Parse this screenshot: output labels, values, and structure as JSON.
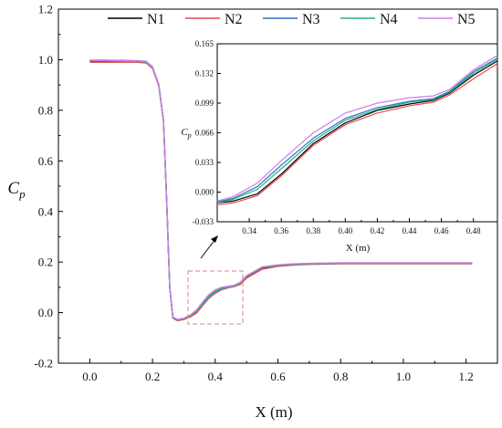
{
  "chart_data": [
    {
      "type": "line",
      "ylabel": "C",
      "ylabel_sub": "p",
      "xlabel": "X (m)",
      "xlim": [
        -0.1,
        1.3
      ],
      "ylim": [
        -0.2,
        1.2
      ],
      "xticks": [
        0.0,
        0.2,
        0.4,
        0.6,
        0.8,
        1.0,
        1.2
      ],
      "xtick_labels": [
        "0.0",
        "0.2",
        "0.4",
        "0.6",
        "0.8",
        "1.0",
        "1.2"
      ],
      "yticks": [
        -0.2,
        0.0,
        0.2,
        0.4,
        0.6,
        0.8,
        1.0,
        1.2
      ],
      "ytick_labels": [
        "-0.2",
        "0.0",
        "0.2",
        "0.4",
        "0.6",
        "0.8",
        "1.0",
        "1.2"
      ],
      "grid": false,
      "legend_position": "top",
      "series": [
        {
          "name": "N1",
          "color": "#000000",
          "x": [
            0.0,
            0.05,
            0.1,
            0.15,
            0.18,
            0.2,
            0.22,
            0.235,
            0.245,
            0.255,
            0.265,
            0.28,
            0.3,
            0.32,
            0.34,
            0.36,
            0.38,
            0.4,
            0.42,
            0.44,
            0.46,
            0.48,
            0.5,
            0.55,
            0.6,
            0.65,
            0.7,
            0.8,
            0.9,
            1.0,
            1.1,
            1.22
          ],
          "y": [
            0.995,
            0.995,
            0.994,
            0.993,
            0.99,
            0.97,
            0.9,
            0.76,
            0.45,
            0.1,
            -0.02,
            -0.03,
            -0.025,
            -0.015,
            0.0,
            0.03,
            0.06,
            0.08,
            0.093,
            0.1,
            0.104,
            0.115,
            0.14,
            0.175,
            0.185,
            0.19,
            0.193,
            0.195,
            0.195,
            0.195,
            0.195,
            0.195
          ]
        },
        {
          "name": "N2",
          "color": "#e8474a",
          "x": [
            0.0,
            0.05,
            0.1,
            0.15,
            0.18,
            0.2,
            0.22,
            0.235,
            0.245,
            0.255,
            0.265,
            0.28,
            0.3,
            0.32,
            0.34,
            0.36,
            0.38,
            0.4,
            0.42,
            0.44,
            0.46,
            0.48,
            0.5,
            0.55,
            0.6,
            0.65,
            0.7,
            0.8,
            0.9,
            1.0,
            1.1,
            1.22
          ],
          "y": [
            0.99,
            0.99,
            0.99,
            0.99,
            0.987,
            0.966,
            0.896,
            0.756,
            0.446,
            0.098,
            -0.022,
            -0.032,
            -0.027,
            -0.017,
            -0.002,
            0.028,
            0.057,
            0.077,
            0.09,
            0.098,
            0.103,
            0.112,
            0.137,
            0.172,
            0.183,
            0.188,
            0.191,
            0.193,
            0.193,
            0.193,
            0.193,
            0.193
          ]
        },
        {
          "name": "N3",
          "color": "#2e6fc2",
          "x": [
            0.0,
            0.05,
            0.1,
            0.15,
            0.18,
            0.2,
            0.22,
            0.235,
            0.245,
            0.255,
            0.265,
            0.28,
            0.3,
            0.32,
            0.34,
            0.36,
            0.38,
            0.4,
            0.42,
            0.44,
            0.46,
            0.48,
            0.5,
            0.55,
            0.6,
            0.65,
            0.7,
            0.8,
            0.9,
            1.0,
            1.1,
            1.22
          ],
          "y": [
            0.998,
            0.998,
            0.997,
            0.996,
            0.993,
            0.972,
            0.902,
            0.762,
            0.452,
            0.102,
            -0.018,
            -0.028,
            -0.023,
            -0.012,
            0.006,
            0.037,
            0.065,
            0.084,
            0.096,
            0.102,
            0.106,
            0.118,
            0.145,
            0.18,
            0.188,
            0.192,
            0.194,
            0.196,
            0.196,
            0.196,
            0.196,
            0.196
          ]
        },
        {
          "name": "N4",
          "color": "#22b38a",
          "x": [
            0.0,
            0.05,
            0.1,
            0.15,
            0.18,
            0.2,
            0.22,
            0.235,
            0.245,
            0.255,
            0.265,
            0.28,
            0.3,
            0.32,
            0.34,
            0.36,
            0.38,
            0.4,
            0.42,
            0.44,
            0.46,
            0.48,
            0.5,
            0.55,
            0.6,
            0.65,
            0.7,
            0.8,
            0.9,
            1.0,
            1.1,
            1.22
          ],
          "y": [
            0.996,
            0.996,
            0.995,
            0.994,
            0.991,
            0.97,
            0.9,
            0.76,
            0.45,
            0.1,
            -0.019,
            -0.029,
            -0.024,
            -0.013,
            0.004,
            0.034,
            0.062,
            0.082,
            0.094,
            0.101,
            0.105,
            0.117,
            0.143,
            0.178,
            0.187,
            0.191,
            0.193,
            0.195,
            0.195,
            0.195,
            0.195,
            0.195
          ]
        },
        {
          "name": "N5",
          "color": "#cf7ee3",
          "x": [
            0.0,
            0.05,
            0.1,
            0.15,
            0.18,
            0.2,
            0.22,
            0.235,
            0.245,
            0.255,
            0.265,
            0.28,
            0.3,
            0.32,
            0.34,
            0.36,
            0.38,
            0.4,
            0.42,
            0.44,
            0.46,
            0.48,
            0.5,
            0.55,
            0.6,
            0.65,
            0.7,
            0.8,
            0.9,
            1.0,
            1.1,
            1.22
          ],
          "y": [
            0.997,
            0.997,
            0.996,
            0.995,
            0.992,
            0.971,
            0.901,
            0.761,
            0.451,
            0.101,
            -0.017,
            -0.027,
            -0.022,
            -0.01,
            0.01,
            0.042,
            0.071,
            0.09,
            0.1,
            0.104,
            0.108,
            0.12,
            0.146,
            0.181,
            0.189,
            0.193,
            0.195,
            0.197,
            0.197,
            0.197,
            0.197,
            0.197
          ]
        }
      ]
    },
    {
      "type": "line",
      "ylabel": "C",
      "ylabel_sub": "p",
      "xlabel": "X (m)",
      "xlim": [
        0.32,
        0.495
      ],
      "ylim": [
        -0.033,
        0.165
      ],
      "xticks": [
        0.34,
        0.36,
        0.38,
        0.4,
        0.42,
        0.44,
        0.46,
        0.48
      ],
      "xtick_labels": [
        "0.34",
        "0.36",
        "0.38",
        "0.40",
        "0.42",
        "0.44",
        "0.46",
        "0.48"
      ],
      "yticks": [
        -0.033,
        0.0,
        0.033,
        0.066,
        0.099,
        0.132,
        0.165
      ],
      "ytick_labels": [
        "-0.033",
        "0.000",
        "0.033",
        "0.066",
        "0.099",
        "0.132",
        "0.165"
      ],
      "grid": false,
      "series": [
        {
          "name": "N1",
          "color": "#000000",
          "x": [
            0.32,
            0.33,
            0.345,
            0.36,
            0.38,
            0.4,
            0.42,
            0.44,
            0.455,
            0.465,
            0.48,
            0.495
          ],
          "y": [
            -0.012,
            -0.01,
            -0.002,
            0.02,
            0.054,
            0.077,
            0.091,
            0.098,
            0.102,
            0.11,
            0.13,
            0.146
          ]
        },
        {
          "name": "N2",
          "color": "#e8474a",
          "x": [
            0.32,
            0.33,
            0.345,
            0.36,
            0.38,
            0.4,
            0.42,
            0.44,
            0.455,
            0.465,
            0.48,
            0.495
          ],
          "y": [
            -0.014,
            -0.012,
            -0.004,
            0.018,
            0.052,
            0.075,
            0.088,
            0.096,
            0.1,
            0.108,
            0.126,
            0.143
          ]
        },
        {
          "name": "N3",
          "color": "#2e6fc2",
          "x": [
            0.32,
            0.33,
            0.345,
            0.36,
            0.38,
            0.4,
            0.42,
            0.44,
            0.455,
            0.465,
            0.48,
            0.495
          ],
          "y": [
            -0.011,
            -0.007,
            0.006,
            0.03,
            0.06,
            0.082,
            0.094,
            0.101,
            0.104,
            0.112,
            0.134,
            0.149
          ]
        },
        {
          "name": "N4",
          "color": "#22b38a",
          "x": [
            0.32,
            0.33,
            0.345,
            0.36,
            0.38,
            0.4,
            0.42,
            0.44,
            0.455,
            0.465,
            0.48,
            0.495
          ],
          "y": [
            -0.012,
            -0.008,
            0.003,
            0.026,
            0.057,
            0.08,
            0.092,
            0.1,
            0.103,
            0.111,
            0.132,
            0.148
          ]
        },
        {
          "name": "N5",
          "color": "#cf7ee3",
          "x": [
            0.32,
            0.33,
            0.345,
            0.36,
            0.38,
            0.4,
            0.42,
            0.44,
            0.455,
            0.465,
            0.48,
            0.495
          ],
          "y": [
            -0.01,
            -0.005,
            0.01,
            0.035,
            0.066,
            0.088,
            0.099,
            0.105,
            0.107,
            0.114,
            0.136,
            0.152
          ]
        }
      ]
    }
  ]
}
